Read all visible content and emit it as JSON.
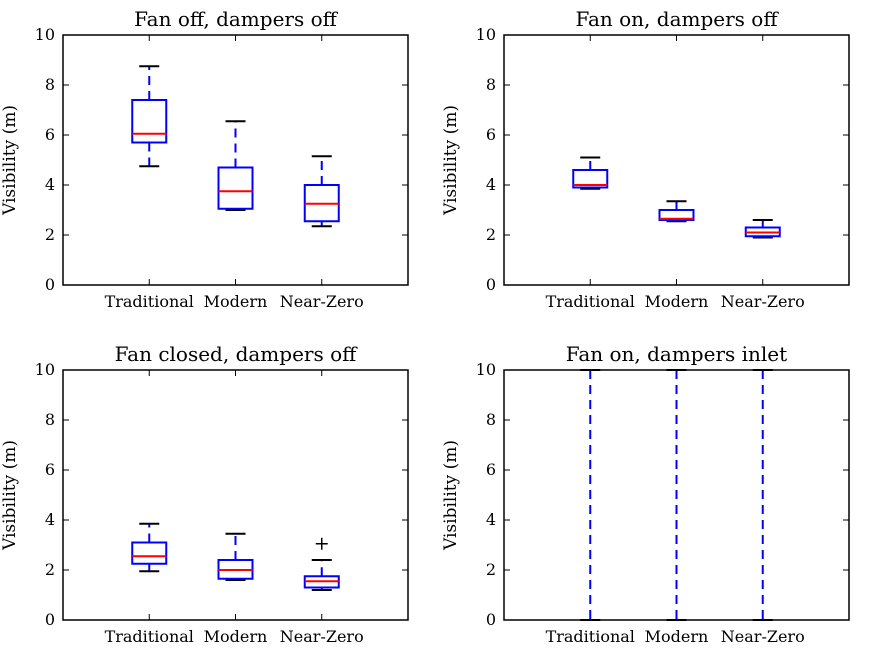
{
  "chart_data": [
    {
      "type": "box",
      "title": "Fan off, dampers off",
      "ylabel": "Visibility (m)",
      "ylim": [
        0,
        10
      ],
      "yticks": [
        "0",
        "2",
        "4",
        "6",
        "8",
        "10"
      ],
      "categories": [
        "Traditional",
        "Modern",
        "Near-Zero"
      ],
      "boxes": [
        {
          "whisker_low": 4.75,
          "q1": 5.7,
          "median": 6.05,
          "q3": 7.4,
          "whisker_high": 8.75,
          "outliers": []
        },
        {
          "whisker_low": 3.0,
          "q1": 3.05,
          "median": 3.75,
          "q3": 4.7,
          "whisker_high": 6.55,
          "outliers": []
        },
        {
          "whisker_low": 2.35,
          "q1": 2.55,
          "median": 3.25,
          "q3": 4.0,
          "whisker_high": 5.15,
          "outliers": []
        }
      ]
    },
    {
      "type": "box",
      "title": "Fan on, dampers off",
      "ylabel": "Visibility (m)",
      "ylim": [
        0,
        10
      ],
      "yticks": [
        "0",
        "2",
        "4",
        "6",
        "8",
        "10"
      ],
      "categories": [
        "Traditional",
        "Modern",
        "Near-Zero"
      ],
      "boxes": [
        {
          "whisker_low": 3.85,
          "q1": 3.9,
          "median": 4.0,
          "q3": 4.6,
          "whisker_high": 5.1,
          "outliers": []
        },
        {
          "whisker_low": 2.55,
          "q1": 2.6,
          "median": 2.65,
          "q3": 3.0,
          "whisker_high": 3.35,
          "outliers": []
        },
        {
          "whisker_low": 1.9,
          "q1": 1.95,
          "median": 2.1,
          "q3": 2.3,
          "whisker_high": 2.6,
          "outliers": []
        }
      ]
    },
    {
      "type": "box",
      "title": "Fan closed, dampers off",
      "ylabel": "Visibility (m)",
      "ylim": [
        0,
        10
      ],
      "yticks": [
        "0",
        "2",
        "4",
        "6",
        "8",
        "10"
      ],
      "categories": [
        "Traditional",
        "Modern",
        "Near-Zero"
      ],
      "boxes": [
        {
          "whisker_low": 1.95,
          "q1": 2.25,
          "median": 2.55,
          "q3": 3.1,
          "whisker_high": 3.85,
          "outliers": []
        },
        {
          "whisker_low": 1.6,
          "q1": 1.65,
          "median": 2.0,
          "q3": 2.4,
          "whisker_high": 3.45,
          "outliers": []
        },
        {
          "whisker_low": 1.2,
          "q1": 1.3,
          "median": 1.55,
          "q3": 1.75,
          "whisker_high": 2.4,
          "outliers": [
            3.05
          ]
        }
      ]
    },
    {
      "type": "box",
      "title": "Fan on, dampers inlet",
      "ylabel": "Visibility (m)",
      "ylim": [
        0,
        10
      ],
      "yticks": [
        "0",
        "2",
        "4",
        "6",
        "8",
        "10"
      ],
      "categories": [
        "Traditional",
        "Modern",
        "Near-Zero"
      ],
      "boxes": [
        {
          "whisker_low": 0,
          "q1": 10,
          "median": 10,
          "q3": 10,
          "whisker_high": 10,
          "outliers": []
        },
        {
          "whisker_low": 0,
          "q1": 10,
          "median": 10,
          "q3": 10,
          "whisker_high": 10,
          "outliers": []
        },
        {
          "whisker_low": 0,
          "q1": 10,
          "median": 10,
          "q3": 10,
          "whisker_high": 10,
          "outliers": []
        }
      ]
    }
  ],
  "colors": {
    "box": "#0000ff",
    "median": "#ff0000",
    "cap": "#000000",
    "outlier": "#000000"
  }
}
